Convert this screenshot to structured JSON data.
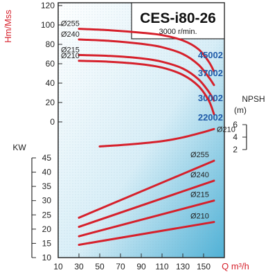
{
  "chart_data": {
    "type": "line",
    "title": "CES-i80-26",
    "subtitle": "3000 r/min.",
    "x": {
      "label": "Q m³/h",
      "range": [
        10,
        170
      ],
      "ticks": [
        "10",
        "30",
        "50",
        "70",
        "90",
        "110",
        "130",
        "150"
      ]
    },
    "head_axis": {
      "label": "Hm/Mss",
      "range": [
        0,
        120
      ],
      "ticks": [
        "120",
        "100",
        "80",
        "60",
        "40",
        "20",
        "0"
      ]
    },
    "power_axis": {
      "label": "KW",
      "range": [
        10,
        45
      ],
      "ticks": [
        "45",
        "40",
        "35",
        "30",
        "25",
        "20",
        "15",
        "10"
      ]
    },
    "npsh_axis": {
      "label_line1": "NPSH",
      "label_line2": "(m)",
      "range": [
        2,
        6
      ],
      "ticks": [
        "6",
        "4",
        "2"
      ]
    },
    "head_curves": [
      {
        "name": "Ø255",
        "model": "45002",
        "points": [
          [
            30,
            96
          ],
          [
            60,
            94.5
          ],
          [
            90,
            92
          ],
          [
            110,
            89.5
          ],
          [
            130,
            84
          ],
          [
            145,
            75
          ],
          [
            155,
            62
          ],
          [
            160,
            52
          ]
        ]
      },
      {
        "name": "Ø240",
        "model": "37002",
        "points": [
          [
            30,
            85
          ],
          [
            60,
            83.5
          ],
          [
            90,
            80.5
          ],
          [
            110,
            77
          ],
          [
            130,
            70
          ],
          [
            145,
            59
          ],
          [
            155,
            46
          ],
          [
            160,
            38
          ]
        ]
      },
      {
        "name": "Ø215",
        "model": "30002",
        "points": [
          [
            30,
            69
          ],
          [
            60,
            68
          ],
          [
            90,
            65.5
          ],
          [
            110,
            62
          ],
          [
            130,
            55
          ],
          [
            145,
            44
          ],
          [
            155,
            31
          ],
          [
            160,
            22
          ]
        ]
      },
      {
        "name": "Ø210",
        "model": "22002",
        "points": [
          [
            30,
            63
          ],
          [
            60,
            62
          ],
          [
            90,
            59.5
          ],
          [
            110,
            56
          ],
          [
            130,
            48.5
          ],
          [
            145,
            37
          ],
          [
            155,
            22
          ],
          [
            160,
            8
          ]
        ]
      }
    ],
    "npsh_curve": {
      "name": "Ø210",
      "points": [
        [
          50,
          2.5
        ],
        [
          80,
          2.85
        ],
        [
          110,
          3.35
        ],
        [
          130,
          3.95
        ],
        [
          150,
          4.8
        ],
        [
          160,
          5.3
        ]
      ]
    },
    "power_curves": [
      {
        "name": "Ø255",
        "points": [
          [
            30,
            24
          ],
          [
            160,
            44
          ]
        ]
      },
      {
        "name": "Ø240",
        "points": [
          [
            30,
            20.8
          ],
          [
            160,
            37
          ]
        ]
      },
      {
        "name": "Ø215",
        "points": [
          [
            30,
            17.5
          ],
          [
            160,
            30
          ]
        ]
      },
      {
        "name": "Ø210",
        "points": [
          [
            30,
            14.5
          ],
          [
            160,
            22.5
          ]
        ]
      }
    ],
    "colors": {
      "curve": "#d6202b",
      "model": "#1f5aa8",
      "axis_title": "#d6202b",
      "plot_top": "#ffffff",
      "plot_bottom": "#5bb8da"
    }
  }
}
